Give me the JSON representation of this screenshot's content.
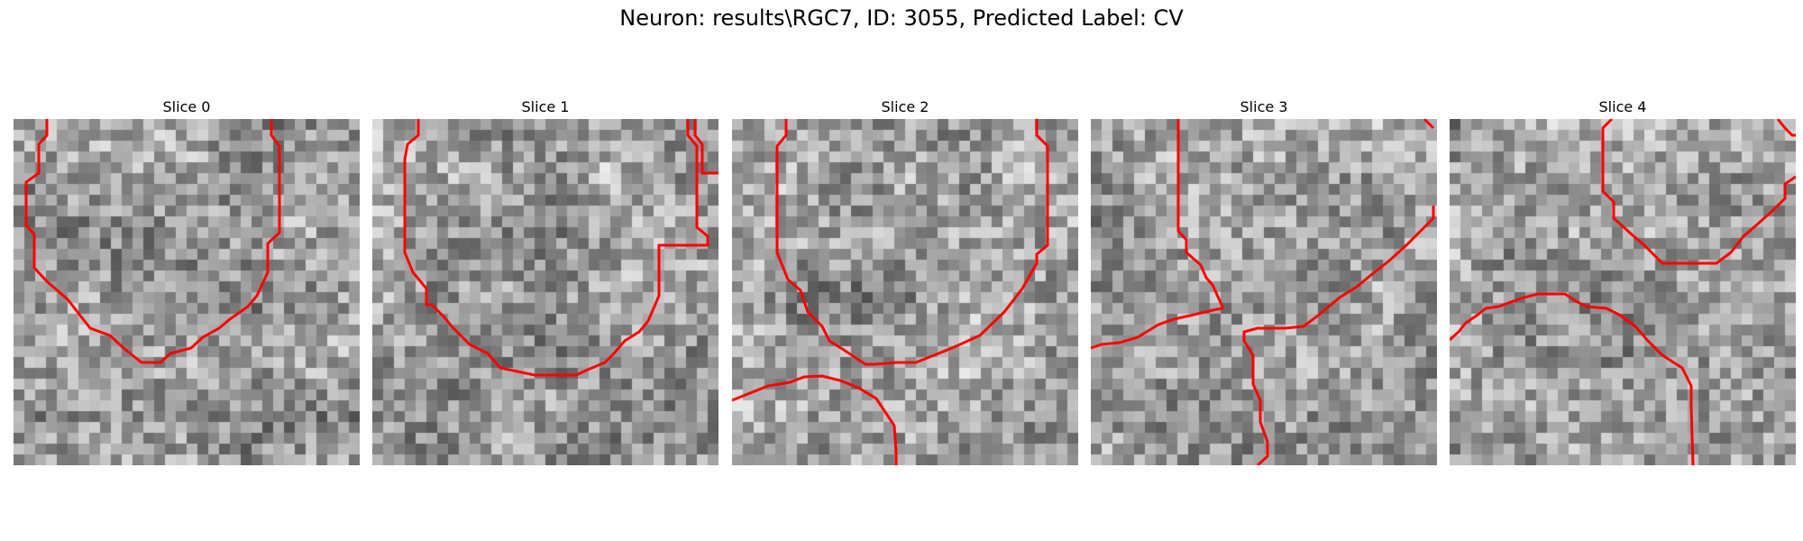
{
  "figure": {
    "title": "Neuron: results\\RGC7, ID: 3055, Predicted Label: CV"
  },
  "colors": {
    "contour": "#ff0000",
    "background": "#ffffff"
  },
  "colormap": "gray",
  "slices": [
    {
      "label": "Slice 0"
    },
    {
      "label": "Slice 1"
    },
    {
      "label": "Slice 2"
    },
    {
      "label": "Slice 3"
    },
    {
      "label": "Slice 4"
    }
  ]
}
